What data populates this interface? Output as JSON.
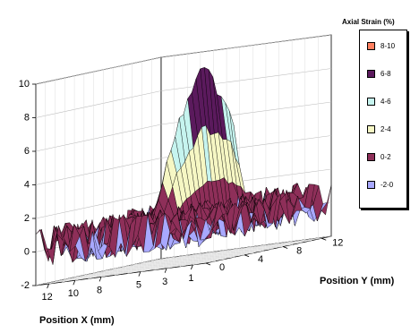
{
  "chart_data": {
    "type": "surface",
    "title": "",
    "legend_title": "Axial Strain (%)",
    "legend": [
      {
        "label": "8-10",
        "color": "#ff7f5f"
      },
      {
        "label": "6-8",
        "color": "#5b1a5d"
      },
      {
        "label": "4-6",
        "color": "#c6f4ef"
      },
      {
        "label": "2-4",
        "color": "#f6f7c4"
      },
      {
        "label": "0-2",
        "color": "#8e2f59"
      },
      {
        "label": "-2-0",
        "color": "#a8a8ff"
      }
    ],
    "x_axis": {
      "label": "Position X (mm)",
      "ticks": [
        "12",
        "10",
        "8",
        "5",
        "3",
        "1"
      ]
    },
    "y_axis": {
      "label": "Position Y (mm)",
      "ticks": [
        "0",
        "4",
        "8",
        "12"
      ]
    },
    "z_axis": {
      "label": "",
      "ticks": [
        "-2",
        "0",
        "2",
        "4",
        "6",
        "8",
        "10"
      ],
      "range": [
        -2,
        10
      ]
    },
    "x_range": [
      0,
      13
    ],
    "y_range": [
      0,
      13
    ],
    "description_values": {
      "background_strain_range": [
        -1,
        1.5
      ],
      "ridge_position_x_mm": 6.5,
      "ridge_peak_strain": 9.5
    }
  }
}
